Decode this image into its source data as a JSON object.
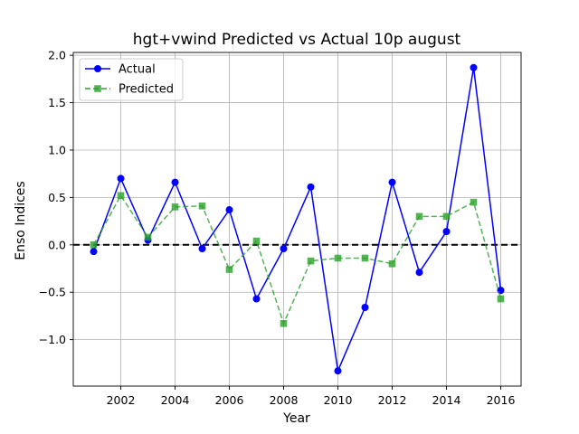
{
  "chart_data": {
    "type": "line",
    "title": "hgt+vwind Predicted vs Actual 10p august",
    "xlabel": "Year",
    "ylabel": "Enso Indices",
    "x": [
      2001,
      2002,
      2003,
      2004,
      2005,
      2006,
      2007,
      2008,
      2009,
      2010,
      2011,
      2012,
      2013,
      2014,
      2015,
      2016
    ],
    "series": [
      {
        "name": "Actual",
        "color": "#0000ff",
        "marker": "circle",
        "linestyle": "solid",
        "values": [
          -0.07,
          0.7,
          0.05,
          0.66,
          -0.04,
          0.37,
          -0.57,
          -0.04,
          0.61,
          -1.33,
          -0.66,
          0.66,
          -0.29,
          0.14,
          1.87,
          -0.48
        ]
      },
      {
        "name": "Predicted",
        "color": "#2ca02c",
        "marker": "square",
        "linestyle": "dashed",
        "values": [
          0.0,
          0.52,
          0.08,
          0.4,
          0.41,
          -0.26,
          0.04,
          -0.83,
          -0.17,
          -0.14,
          -0.14,
          -0.2,
          0.3,
          0.3,
          0.45,
          -0.57
        ]
      }
    ],
    "xlim": [
      2000.25,
      2016.75
    ],
    "ylim": [
      -1.49,
      2.03
    ],
    "xticks": [
      2002,
      2004,
      2006,
      2008,
      2010,
      2012,
      2014,
      2016
    ],
    "xtick_labels": [
      "2002",
      "2004",
      "2006",
      "2008",
      "2010",
      "2012",
      "2014",
      "2016"
    ],
    "yticks": [
      -1.0,
      -0.5,
      0.0,
      0.5,
      1.0,
      1.5,
      2.0
    ],
    "ytick_labels": [
      "−1.0",
      "−0.5",
      "0.0",
      "0.5",
      "1.0",
      "1.5",
      "2.0"
    ],
    "reference_line": {
      "y": 0,
      "color": "#000000",
      "style": "dashed"
    },
    "grid": true,
    "legend_position": "top-left"
  }
}
